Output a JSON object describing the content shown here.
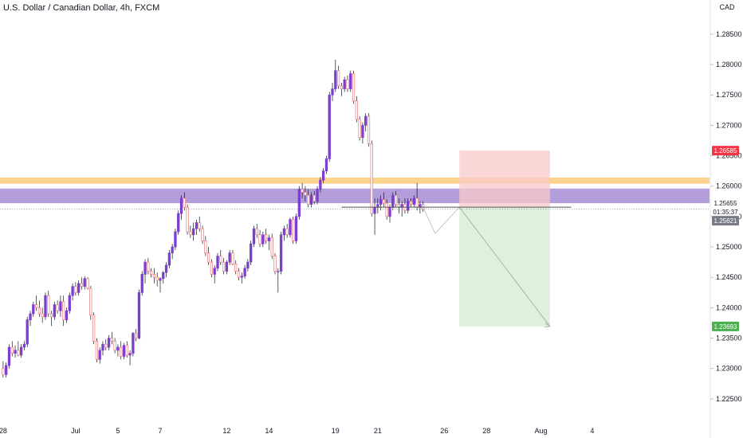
{
  "header": {
    "title": "U.S. Dollar / Canadian Dollar, 4h, FXCM",
    "currency": "CAD"
  },
  "colors": {
    "bull": "#7b3fd0",
    "bear": "#e87a7a",
    "resistance_band": "#fdd28a",
    "zone_band": "#b39ddb",
    "stop_zone": "#f8c9c9",
    "target_zone": "#d9efd6",
    "stop_tag": "#f23645",
    "target_tag": "#4caf50",
    "price_tag": "#131722",
    "grid": "#e6e6e6"
  },
  "chart_data": {
    "type": "candlestick",
    "title": "U.S. Dollar / Canadian Dollar, 4h, FXCM",
    "ylabel": "CAD",
    "ylim": [
      1.2225,
      1.288
    ],
    "yticks": [
      "1.22500",
      "1.23000",
      "1.23500",
      "1.24000",
      "1.24500",
      "1.25000",
      "1.25500",
      "1.26000",
      "1.26500",
      "1.27000",
      "1.27500",
      "1.28000",
      "1.28500"
    ],
    "xticks": [
      "28",
      "Jul",
      "5",
      "7",
      "12",
      "14",
      "19",
      "21",
      "26",
      "28",
      "Aug",
      "4"
    ],
    "xtick_index": [
      0,
      24,
      38,
      52,
      74,
      88,
      110,
      124,
      146,
      160,
      178,
      195
    ],
    "grid": false,
    "candles": [
      [
        1.23,
        1.2312,
        1.2285,
        1.229
      ],
      [
        1.229,
        1.231,
        1.2285,
        1.2305
      ],
      [
        1.2305,
        1.234,
        1.23,
        1.2335
      ],
      [
        1.2335,
        1.2345,
        1.232,
        1.2325
      ],
      [
        1.2325,
        1.2338,
        1.2318,
        1.233
      ],
      [
        1.233,
        1.2345,
        1.232,
        1.2322
      ],
      [
        1.2322,
        1.234,
        1.2318,
        1.2335
      ],
      [
        1.2335,
        1.2345,
        1.233,
        1.234
      ],
      [
        1.234,
        1.2385,
        1.2335,
        1.238
      ],
      [
        1.238,
        1.2395,
        1.237,
        1.239
      ],
      [
        1.239,
        1.241,
        1.2385,
        1.2405
      ],
      [
        1.2405,
        1.242,
        1.2395,
        1.24
      ],
      [
        1.24,
        1.2412,
        1.2385,
        1.239
      ],
      [
        1.239,
        1.24,
        1.2375,
        1.2385
      ],
      [
        1.2385,
        1.2425,
        1.238,
        1.242
      ],
      [
        1.242,
        1.2428,
        1.2385,
        1.239
      ],
      [
        1.239,
        1.2395,
        1.237,
        1.2385
      ],
      [
        1.2385,
        1.241,
        1.238,
        1.2405
      ],
      [
        1.2405,
        1.2412,
        1.239,
        1.2395
      ],
      [
        1.2395,
        1.242,
        1.2385,
        1.241
      ],
      [
        1.241,
        1.242,
        1.237,
        1.238
      ],
      [
        1.238,
        1.24,
        1.2375,
        1.2395
      ],
      [
        1.2395,
        1.2425,
        1.239,
        1.242
      ],
      [
        1.242,
        1.244,
        1.2412,
        1.2435
      ],
      [
        1.2435,
        1.2442,
        1.242,
        1.2425
      ],
      [
        1.2425,
        1.2445,
        1.242,
        1.244
      ],
      [
        1.244,
        1.245,
        1.243,
        1.2435
      ],
      [
        1.2435,
        1.2452,
        1.243,
        1.2448
      ],
      [
        1.2448,
        1.245,
        1.243,
        1.2432
      ],
      [
        1.2432,
        1.2436,
        1.238,
        1.2388
      ],
      [
        1.2388,
        1.2392,
        1.234,
        1.2345
      ],
      [
        1.2345,
        1.235,
        1.231,
        1.2315
      ],
      [
        1.2315,
        1.2335,
        1.2308,
        1.233
      ],
      [
        1.233,
        1.2345,
        1.2322,
        1.234
      ],
      [
        1.234,
        1.2348,
        1.233,
        1.2335
      ],
      [
        1.2335,
        1.2355,
        1.233,
        1.235
      ],
      [
        1.235,
        1.236,
        1.234,
        1.2345
      ],
      [
        1.2345,
        1.235,
        1.2325,
        1.233
      ],
      [
        1.233,
        1.234,
        1.232,
        1.2335
      ],
      [
        1.2335,
        1.2345,
        1.2315,
        1.232
      ],
      [
        1.232,
        1.2342,
        1.2315,
        1.2338
      ],
      [
        1.2338,
        1.2345,
        1.2318,
        1.2322
      ],
      [
        1.2322,
        1.233,
        1.2305,
        1.2325
      ],
      [
        1.2325,
        1.236,
        1.232,
        1.2358
      ],
      [
        1.2358,
        1.2365,
        1.2345,
        1.235
      ],
      [
        1.235,
        1.243,
        1.2348,
        1.2425
      ],
      [
        1.2425,
        1.246,
        1.242,
        1.2455
      ],
      [
        1.2455,
        1.248,
        1.244,
        1.2475
      ],
      [
        1.2475,
        1.2482,
        1.2455,
        1.246
      ],
      [
        1.246,
        1.2465,
        1.245,
        1.2455
      ],
      [
        1.2455,
        1.2465,
        1.244,
        1.245
      ],
      [
        1.245,
        1.2458,
        1.2435,
        1.2445
      ],
      [
        1.2445,
        1.245,
        1.2425,
        1.2448
      ],
      [
        1.2448,
        1.246,
        1.244,
        1.2458
      ],
      [
        1.2458,
        1.2475,
        1.245,
        1.247
      ],
      [
        1.247,
        1.2495,
        1.2465,
        1.249
      ],
      [
        1.249,
        1.2505,
        1.248,
        1.25
      ],
      [
        1.25,
        1.253,
        1.2495,
        1.2525
      ],
      [
        1.2525,
        1.256,
        1.252,
        1.2555
      ],
      [
        1.2555,
        1.2585,
        1.2545,
        1.258
      ],
      [
        1.258,
        1.259,
        1.256,
        1.2565
      ],
      [
        1.2565,
        1.257,
        1.252,
        1.2525
      ],
      [
        1.2525,
        1.2535,
        1.2515,
        1.252
      ],
      [
        1.252,
        1.254,
        1.251,
        1.253
      ],
      [
        1.253,
        1.2545,
        1.252,
        1.254
      ],
      [
        1.254,
        1.255,
        1.2525,
        1.253
      ],
      [
        1.253,
        1.2535,
        1.2505,
        1.251
      ],
      [
        1.251,
        1.2518,
        1.2485,
        1.249
      ],
      [
        1.249,
        1.25,
        1.247,
        1.2475
      ],
      [
        1.2475,
        1.248,
        1.245,
        1.2455
      ],
      [
        1.2455,
        1.247,
        1.244,
        1.2465
      ],
      [
        1.2465,
        1.249,
        1.246,
        1.2485
      ],
      [
        1.2485,
        1.2495,
        1.247,
        1.2475
      ],
      [
        1.2475,
        1.2482,
        1.2455,
        1.246
      ],
      [
        1.246,
        1.2478,
        1.2455,
        1.2475
      ],
      [
        1.2475,
        1.2495,
        1.247,
        1.249
      ],
      [
        1.249,
        1.2495,
        1.247,
        1.2472
      ],
      [
        1.2472,
        1.2478,
        1.2455,
        1.246
      ],
      [
        1.246,
        1.2465,
        1.2445,
        1.245
      ],
      [
        1.245,
        1.2458,
        1.244,
        1.2452
      ],
      [
        1.2452,
        1.247,
        1.2448,
        1.2465
      ],
      [
        1.2465,
        1.248,
        1.246,
        1.2475
      ],
      [
        1.2475,
        1.251,
        1.247,
        1.2505
      ],
      [
        1.2505,
        1.2535,
        1.25,
        1.253
      ],
      [
        1.253,
        1.2538,
        1.2515,
        1.252
      ],
      [
        1.252,
        1.2528,
        1.25,
        1.2505
      ],
      [
        1.2505,
        1.2525,
        1.25,
        1.252
      ],
      [
        1.252,
        1.253,
        1.2505,
        1.251
      ],
      [
        1.251,
        1.252,
        1.2495,
        1.2515
      ],
      [
        1.2515,
        1.2522,
        1.248,
        1.2485
      ],
      [
        1.2485,
        1.249,
        1.2455,
        1.246
      ],
      [
        1.246,
        1.2465,
        1.2425,
        1.246
      ],
      [
        1.246,
        1.2525,
        1.2455,
        1.252
      ],
      [
        1.252,
        1.2535,
        1.251,
        1.253
      ],
      [
        1.253,
        1.2538,
        1.2515,
        1.252
      ],
      [
        1.252,
        1.2548,
        1.2515,
        1.2545
      ],
      [
        1.2545,
        1.255,
        1.2505,
        1.251
      ],
      [
        1.251,
        1.2555,
        1.2505,
        1.255
      ],
      [
        1.255,
        1.26,
        1.2545,
        1.2595
      ],
      [
        1.2595,
        1.2605,
        1.258,
        1.259
      ],
      [
        1.259,
        1.26,
        1.2575,
        1.2585
      ],
      [
        1.2585,
        1.2595,
        1.2565,
        1.257
      ],
      [
        1.257,
        1.259,
        1.2565,
        1.2585
      ],
      [
        1.2585,
        1.2592,
        1.257,
        1.2575
      ],
      [
        1.2575,
        1.26,
        1.257,
        1.2595
      ],
      [
        1.2595,
        1.2615,
        1.259,
        1.261
      ],
      [
        1.261,
        1.263,
        1.2605,
        1.2625
      ],
      [
        1.2625,
        1.265,
        1.262,
        1.2645
      ],
      [
        1.2645,
        1.2755,
        1.264,
        1.275
      ],
      [
        1.275,
        1.277,
        1.274,
        1.276
      ],
      [
        1.276,
        1.2808,
        1.2755,
        1.279
      ],
      [
        1.279,
        1.2798,
        1.276,
        1.2765
      ],
      [
        1.2765,
        1.277,
        1.2748,
        1.276
      ],
      [
        1.276,
        1.278,
        1.2755,
        1.2775
      ],
      [
        1.2775,
        1.2782,
        1.2755,
        1.276
      ],
      [
        1.276,
        1.279,
        1.2755,
        1.2785
      ],
      [
        1.2785,
        1.279,
        1.2735,
        1.274
      ],
      [
        1.274,
        1.2748,
        1.2705,
        1.271
      ],
      [
        1.271,
        1.2715,
        1.2675,
        1.268
      ],
      [
        1.268,
        1.2705,
        1.267,
        1.27
      ],
      [
        1.27,
        1.272,
        1.269,
        1.2715
      ],
      [
        1.2715,
        1.272,
        1.2665,
        1.267
      ],
      [
        1.267,
        1.2675,
        1.255,
        1.2555
      ],
      [
        1.2555,
        1.258,
        1.252,
        1.2565
      ],
      [
        1.2565,
        1.258,
        1.2555,
        1.257
      ],
      [
        1.257,
        1.2585,
        1.256,
        1.2578
      ],
      [
        1.2578,
        1.259,
        1.2565,
        1.2572
      ],
      [
        1.2572,
        1.2578,
        1.2545,
        1.255
      ],
      [
        1.255,
        1.257,
        1.254,
        1.2565
      ],
      [
        1.2565,
        1.259,
        1.256,
        1.2585
      ],
      [
        1.2585,
        1.2592,
        1.2565,
        1.257
      ],
      [
        1.257,
        1.258,
        1.2555,
        1.2565
      ],
      [
        1.2565,
        1.2575,
        1.255,
        1.257
      ],
      [
        1.257,
        1.258,
        1.2555,
        1.256
      ],
      [
        1.256,
        1.258,
        1.2555,
        1.2575
      ],
      [
        1.2575,
        1.258,
        1.2565,
        1.257
      ],
      [
        1.257,
        1.2585,
        1.2565,
        1.258
      ],
      [
        1.258,
        1.2605,
        1.256,
        1.2565
      ],
      [
        1.2565,
        1.2575,
        1.2555,
        1.257
      ],
      [
        1.257,
        1.2575,
        1.2558,
        1.2562
      ]
    ],
    "levels": {
      "resistance_band": [
        1.2604,
        1.2614
      ],
      "zone_band": [
        1.2572,
        1.2596
      ],
      "entry": 1.25655,
      "stop": 1.26585,
      "target": 1.23693,
      "current": 1.25621
    },
    "price_tags": {
      "stop": "1.26585",
      "entry": "1.25655",
      "countdown": "01:35:37",
      "current": "1.25621",
      "target": "1.23693"
    },
    "position": {
      "start_index": 151,
      "end_index": 181
    }
  }
}
